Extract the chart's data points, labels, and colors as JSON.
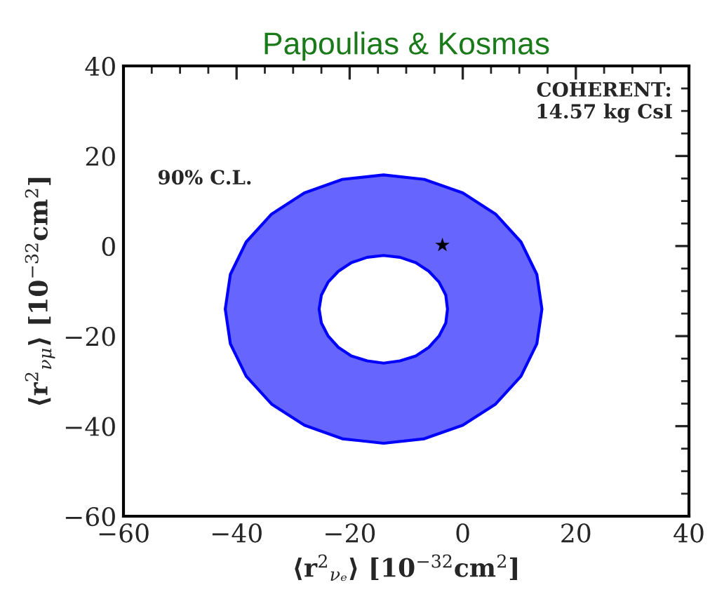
{
  "chart_data": {
    "type": "area",
    "title": "Papoulias & Kosmas",
    "xlabel": "⟨r$^{2}$$_{νₑ}$⟩ [10$^{−32}$cm$^{2}$]",
    "ylabel": "⟨r$^{2}$$_{νμ}$⟩ [10$^{−32}$cm$^{2}$]",
    "annotations": [
      "COHERENT:\n14.57 kg CsI",
      "90% C.L."
    ],
    "xlim": [
      -60,
      40
    ],
    "ylim": [
      -60,
      40
    ],
    "xticks": [
      -60,
      -40,
      -20,
      0,
      20,
      40
    ],
    "yticks": [
      -60,
      -40,
      -20,
      0,
      20,
      40
    ],
    "grid": false,
    "series": [
      {
        "color": "#0000ff",
        "x": [
          14,
          13.1,
          10.3,
          5.8,
          0,
          -6.8,
          -14,
          -21.3,
          -28,
          -33.8,
          -38.3,
          -41.1,
          -42,
          -41.1,
          -38.3,
          -33.8,
          -28,
          -21.3,
          -14,
          -6.8,
          0,
          5.8,
          10.3,
          13.1,
          14
        ],
        "values": [
          -14,
          -6.3,
          0.9,
          7.1,
          11.8,
          14.8,
          15.8,
          14.8,
          11.8,
          7.1,
          0.9,
          -6.3,
          -14,
          -21.7,
          -28.9,
          -35.1,
          -39.8,
          -42.8,
          -43.8,
          -42.8,
          -39.8,
          -35.1,
          -28.9,
          -21.7,
          -14
        ]
      },
      {
        "color": "#0000ff",
        "x": [
          -2.7,
          -3.0,
          -4.2,
          -6.0,
          -8.3,
          -11.1,
          -14,
          -16.9,
          -19.7,
          -22.0,
          -23.8,
          -25.0,
          -25.4,
          -25.0,
          -23.8,
          -22.0,
          -19.7,
          -16.9,
          -14,
          -11.1,
          -8.3,
          -6.0,
          -4.2,
          -3.0,
          -2.7
        ],
        "values": [
          -14,
          -10.9,
          -8.0,
          -5.6,
          -3.7,
          -2.5,
          -2.1,
          -2.5,
          -3.7,
          -5.6,
          -8.0,
          -10.9,
          -14,
          -17.1,
          -20.0,
          -22.5,
          -24.4,
          -25.5,
          -26.0,
          -25.5,
          -24.4,
          -22.5,
          -20.0,
          -17.1,
          -14
        ]
      },
      {
        "type": "scatter",
        "color": "#000000",
        "marker": "star",
        "x": [
          -3.6
        ],
        "values": [
          0.2
        ]
      }
    ]
  }
}
